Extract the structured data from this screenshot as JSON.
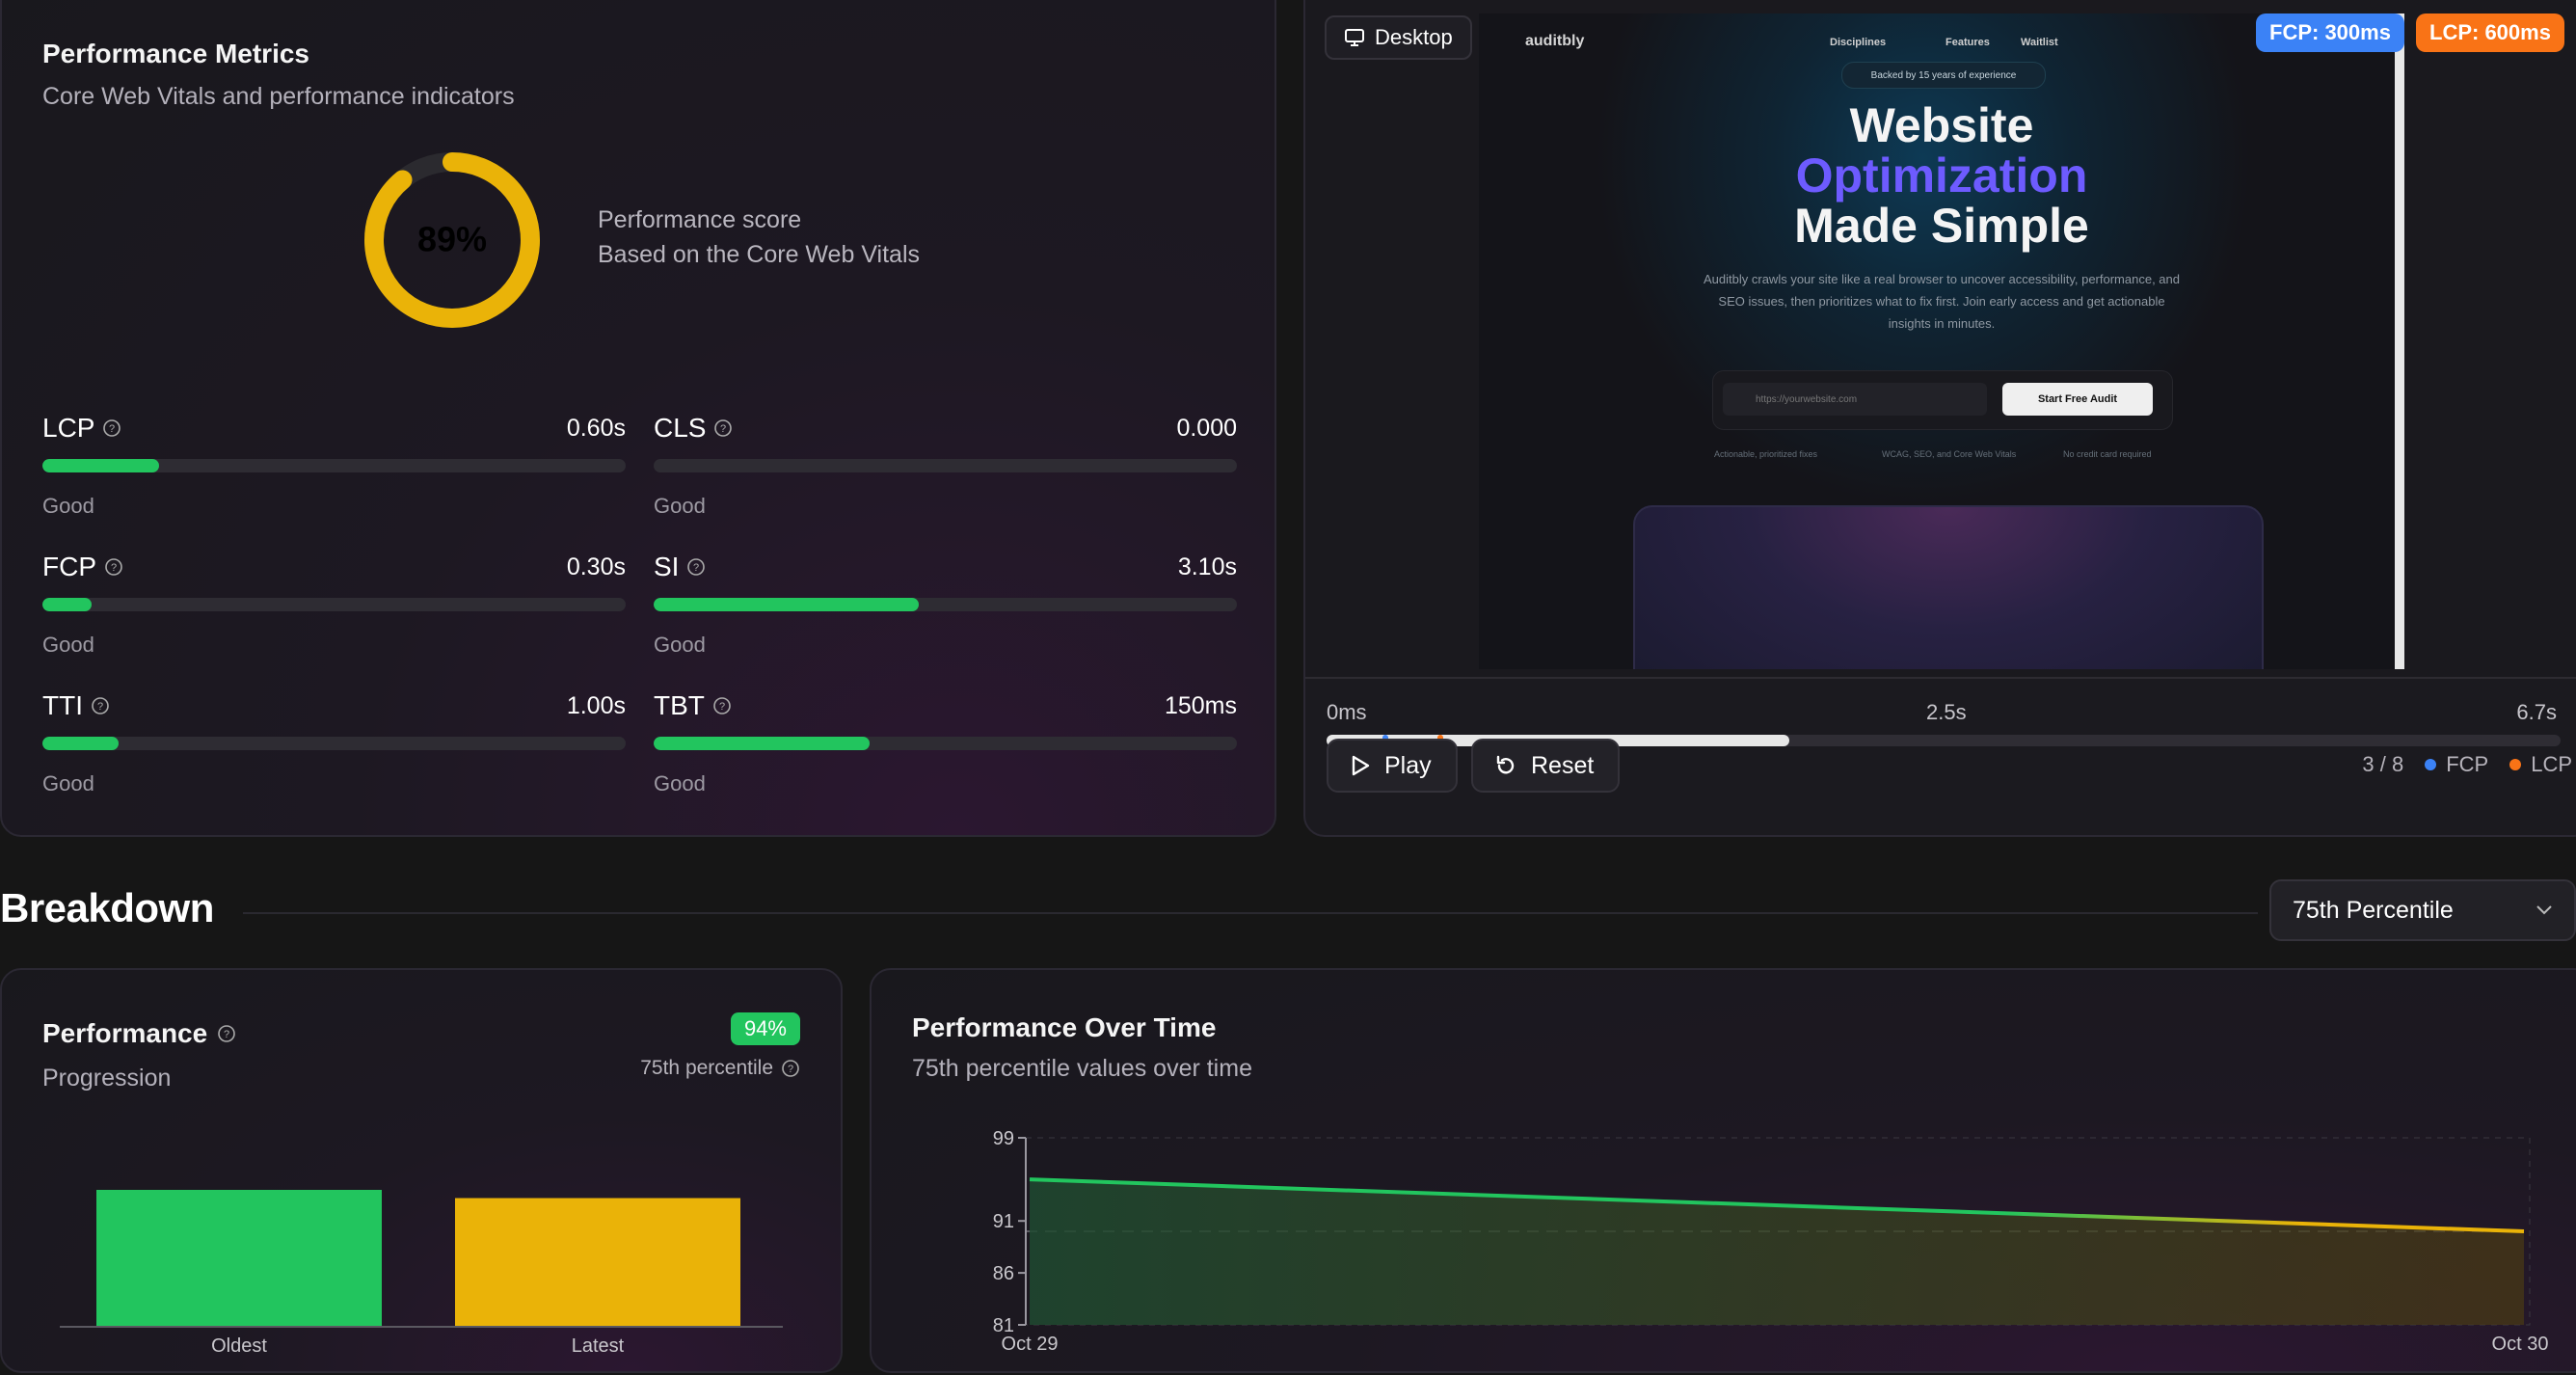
{
  "metrics": {
    "title": "Performance Metrics",
    "subtitle": "Core Web Vitals and performance indicators",
    "score": {
      "value": 89,
      "label": "89%",
      "caption": "Performance score",
      "detail": "Based on the Core Web Vitals",
      "color": "#eab308"
    },
    "items": [
      {
        "name": "LCP",
        "value": "0.60s",
        "rating": "Good",
        "fill": 0.2
      },
      {
        "name": "CLS",
        "value": "0.000",
        "rating": "Good",
        "fill": 0.0
      },
      {
        "name": "FCP",
        "value": "0.30s",
        "rating": "Good",
        "fill": 0.085
      },
      {
        "name": "SI",
        "value": "3.10s",
        "rating": "Good",
        "fill": 0.455
      },
      {
        "name": "TTI",
        "value": "1.00s",
        "rating": "Good",
        "fill": 0.13
      },
      {
        "name": "TBT",
        "value": "150ms",
        "rating": "Good",
        "fill": 0.37
      }
    ]
  },
  "preview": {
    "device": "Desktop",
    "fcp_badge": "FCP: 300ms",
    "lcp_badge": "LCP: 600ms",
    "site": {
      "logo": "auditbly",
      "nav": [
        "Disciplines",
        "Features",
        "Waitlist"
      ],
      "tagline": "Backed by 15 years of experience",
      "headline_1": "Website",
      "headline_2": "Optimization",
      "headline_3": "Made Simple",
      "description_1": "Auditbly crawls your site like a real browser to uncover accessibility, performance, and",
      "description_2": "SEO issues, then prioritizes what to fix first. Join early access and get actionable",
      "description_3": "insights in minutes.",
      "input_placeholder": "https://yourwebsite.com",
      "cta": "Start Free Audit",
      "features": [
        "Actionable, prioritized fixes",
        "WCAG, SEO, and Core Web Vitals",
        "No credit card required"
      ]
    },
    "timeline": {
      "start": "0ms",
      "mid": "2.5s",
      "end": "6.7s",
      "progress": 0.375,
      "fcp_pos": 0.045,
      "lcp_pos": 0.09
    },
    "play_label": "Play",
    "reset_label": "Reset",
    "frame_counter": "3 / 8",
    "legend_fcp": "FCP",
    "legend_lcp": "LCP",
    "fcp_color": "#3b82f6",
    "lcp_color": "#f97316"
  },
  "breakdown": {
    "title": "Breakdown",
    "percentile_selected": "75th Percentile"
  },
  "performance_card": {
    "title": "Performance",
    "subtitle": "Progression",
    "badge": "94%",
    "percentile_note": "75th percentile"
  },
  "time_card": {
    "title": "Performance Over Time",
    "subtitle": "75th percentile values over time"
  },
  "chart_data": [
    {
      "type": "bar",
      "categories": [
        "Oldest",
        "Latest"
      ],
      "values": [
        100,
        94
      ],
      "colors": [
        "#22c55e",
        "#eab308"
      ],
      "title": "Performance",
      "ylim": [
        0,
        100
      ]
    },
    {
      "type": "area",
      "x": [
        "Oct 29",
        "Oct 30"
      ],
      "y": [
        95,
        90
      ],
      "yticks": [
        81,
        86,
        91,
        99
      ],
      "ylim": [
        81,
        99
      ],
      "reference_line": 90,
      "title": "Performance Over Time",
      "colors": [
        "#22c55e",
        "#eab308"
      ]
    }
  ]
}
